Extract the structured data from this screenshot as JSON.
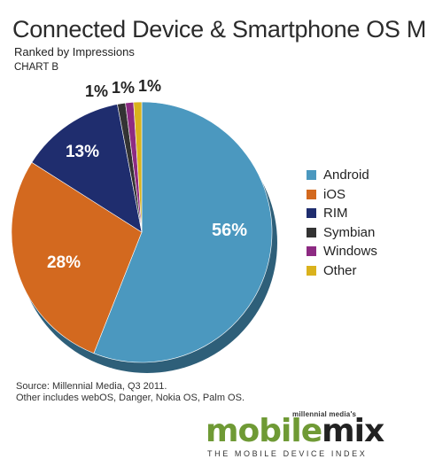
{
  "chart_data": {
    "type": "pie",
    "title": "Connected Device & Smartphone OS Mix",
    "subtitle": "Ranked by Impressions",
    "chart_label": "CHART B",
    "categories": [
      "Android",
      "iOS",
      "RIM",
      "Symbian",
      "Windows",
      "Other"
    ],
    "values": [
      56,
      28,
      13,
      1,
      1,
      1
    ],
    "value_labels": [
      "56%",
      "28%",
      "13%",
      "1%",
      "1%",
      "1%"
    ],
    "colors": [
      "#4b98bf",
      "#d3691f",
      "#1f2d6e",
      "#333333",
      "#8d2a82",
      "#dab21d"
    ],
    "legend_placement": "right"
  },
  "source": {
    "line1": "Source: Millennial Media, Q3 2011.",
    "line2": "Other includes webOS, Danger, Nokia OS, Palm OS."
  },
  "brand": {
    "small": "millennial media's",
    "word_part1": "mobile",
    "word_part2": "mix",
    "tagline": "THE MOBILE DEVICE INDEX"
  }
}
